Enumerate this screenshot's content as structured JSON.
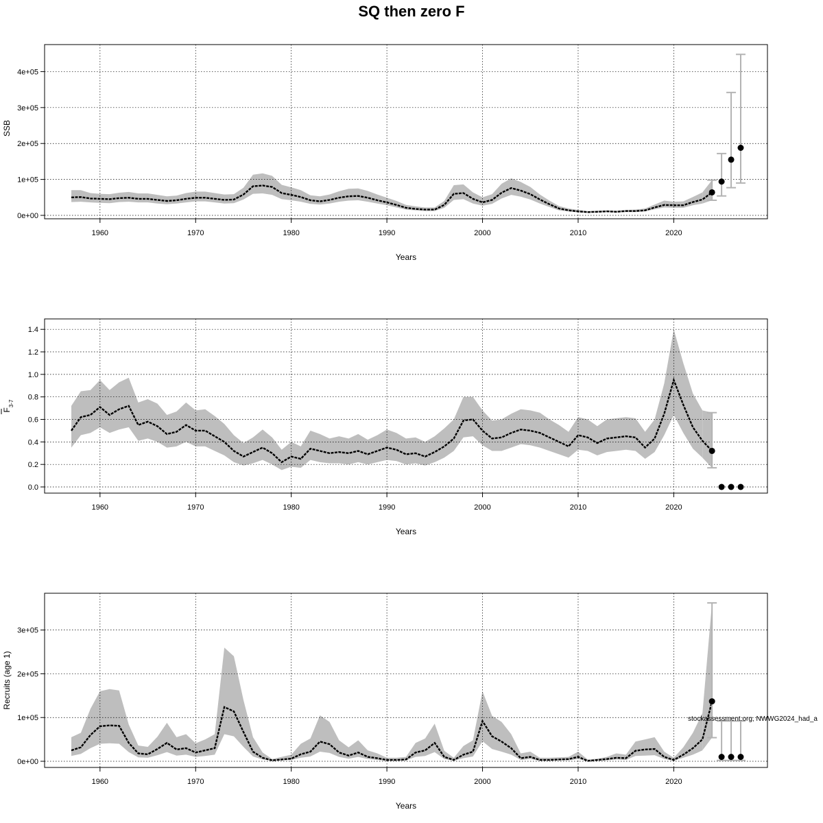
{
  "title": "SQ then zero F",
  "watermark": "stockassessment.org, NWWG2024_had_a",
  "chart_data": [
    {
      "type": "line",
      "name": "ssb",
      "ylabel": "SSB",
      "xlabel": "Years",
      "xlim": [
        1957,
        2027
      ],
      "ylim": [
        0,
        460000
      ],
      "xticks": [
        1960,
        1970,
        1980,
        1990,
        2000,
        2010,
        2020
      ],
      "yticks": [
        0,
        100000,
        200000,
        300000,
        400000
      ],
      "ytick_labels": [
        "0e+00",
        "1e+05",
        "2e+05",
        "3e+05",
        "4e+05"
      ],
      "years": [
        1957,
        1958,
        1959,
        1960,
        1961,
        1962,
        1963,
        1964,
        1965,
        1966,
        1967,
        1968,
        1969,
        1970,
        1971,
        1972,
        1973,
        1974,
        1975,
        1976,
        1977,
        1978,
        1979,
        1980,
        1981,
        1982,
        1983,
        1984,
        1985,
        1986,
        1987,
        1988,
        1989,
        1990,
        1991,
        1992,
        1993,
        1994,
        1995,
        1996,
        1997,
        1998,
        1999,
        2000,
        2001,
        2002,
        2003,
        2004,
        2005,
        2006,
        2007,
        2008,
        2009,
        2010,
        2011,
        2012,
        2013,
        2014,
        2015,
        2016,
        2017,
        2018,
        2019,
        2020,
        2021,
        2022,
        2023
      ],
      "estimate": [
        50000,
        51000,
        47000,
        46000,
        45000,
        48000,
        49000,
        46000,
        46000,
        43000,
        40000,
        42000,
        46000,
        49000,
        49000,
        46000,
        43000,
        44000,
        58000,
        81000,
        83000,
        79000,
        62000,
        57000,
        51000,
        42000,
        39000,
        43000,
        49000,
        53000,
        54000,
        49000,
        42000,
        36000,
        29000,
        21000,
        18000,
        16000,
        16000,
        29000,
        60000,
        62000,
        46000,
        36000,
        43000,
        63000,
        76000,
        69000,
        59000,
        44000,
        31000,
        19000,
        14000,
        11000,
        9000,
        10000,
        11000,
        10000,
        12000,
        12000,
        14000,
        22000,
        29000,
        28000,
        28000,
        37000,
        44000
      ],
      "lower": [
        37000,
        38000,
        36000,
        35000,
        34000,
        37000,
        38000,
        36000,
        36000,
        33000,
        31000,
        33000,
        36000,
        39000,
        39000,
        36000,
        33000,
        34000,
        44000,
        60000,
        61000,
        57000,
        45000,
        42000,
        38000,
        32000,
        30000,
        33000,
        38000,
        41000,
        42000,
        38000,
        33000,
        28000,
        22000,
        16000,
        14000,
        12000,
        12000,
        21000,
        43000,
        45000,
        33000,
        27000,
        32000,
        47000,
        57000,
        52000,
        44000,
        33000,
        23000,
        14000,
        11000,
        8000,
        7000,
        8000,
        9000,
        8000,
        9000,
        9000,
        11000,
        17000,
        22000,
        21000,
        21000,
        28000,
        33000
      ],
      "upper": [
        70000,
        70000,
        62000,
        60000,
        59000,
        63000,
        65000,
        61000,
        61000,
        57000,
        53000,
        55000,
        62000,
        66000,
        66000,
        62000,
        58000,
        59000,
        77000,
        113000,
        117000,
        110000,
        85000,
        78000,
        70000,
        56000,
        53000,
        58000,
        67000,
        74000,
        75000,
        68000,
        58000,
        49000,
        40000,
        29000,
        25000,
        22000,
        22000,
        40000,
        84000,
        86000,
        64000,
        50000,
        59000,
        88000,
        103000,
        93000,
        79000,
        58000,
        41000,
        26000,
        19000,
        15000,
        12000,
        13000,
        14000,
        13000,
        15000,
        16000,
        19000,
        30000,
        41000,
        38000,
        39000,
        51000,
        64000
      ],
      "projection": {
        "years": [
          2024,
          2025,
          2026,
          2027
        ],
        "estimate": [
          64000,
          94000,
          155000,
          188000
        ],
        "lower": [
          42000,
          54000,
          77000,
          90000
        ],
        "upper": [
          98000,
          172000,
          342000,
          448000
        ]
      }
    },
    {
      "type": "line",
      "name": "fbar",
      "ylabel": "F",
      "ylabel_sub": "3-7",
      "xlabel": "Years",
      "xlim": [
        1957,
        2027
      ],
      "ylim": [
        0,
        1.45
      ],
      "xticks": [
        1960,
        1970,
        1980,
        1990,
        2000,
        2010,
        2020
      ],
      "yticks": [
        0,
        0.2,
        0.4,
        0.6,
        0.8,
        1.0,
        1.2,
        1.4
      ],
      "ytick_labels": [
        "0.0",
        "0.2",
        "0.4",
        "0.6",
        "0.8",
        "1.0",
        "1.2",
        "1.4"
      ],
      "years": [
        1957,
        1958,
        1959,
        1960,
        1961,
        1962,
        1963,
        1964,
        1965,
        1966,
        1967,
        1968,
        1969,
        1970,
        1971,
        1972,
        1973,
        1974,
        1975,
        1976,
        1977,
        1978,
        1979,
        1980,
        1981,
        1982,
        1983,
        1984,
        1985,
        1986,
        1987,
        1988,
        1989,
        1990,
        1991,
        1992,
        1993,
        1994,
        1995,
        1996,
        1997,
        1998,
        1999,
        2000,
        2001,
        2002,
        2003,
        2004,
        2005,
        2006,
        2007,
        2008,
        2009,
        2010,
        2011,
        2012,
        2013,
        2014,
        2015,
        2016,
        2017,
        2018,
        2019,
        2020,
        2021,
        2022,
        2023
      ],
      "estimate": [
        0.5,
        0.62,
        0.64,
        0.71,
        0.64,
        0.69,
        0.72,
        0.55,
        0.58,
        0.54,
        0.47,
        0.49,
        0.55,
        0.5,
        0.5,
        0.45,
        0.4,
        0.32,
        0.27,
        0.31,
        0.35,
        0.3,
        0.22,
        0.27,
        0.25,
        0.34,
        0.32,
        0.3,
        0.31,
        0.3,
        0.32,
        0.29,
        0.32,
        0.35,
        0.33,
        0.29,
        0.3,
        0.27,
        0.31,
        0.36,
        0.43,
        0.59,
        0.6,
        0.5,
        0.43,
        0.44,
        0.48,
        0.51,
        0.5,
        0.48,
        0.44,
        0.4,
        0.36,
        0.46,
        0.44,
        0.39,
        0.43,
        0.44,
        0.45,
        0.44,
        0.35,
        0.43,
        0.65,
        0.95,
        0.73,
        0.53,
        0.41
      ],
      "lower": [
        0.35,
        0.46,
        0.48,
        0.53,
        0.48,
        0.51,
        0.53,
        0.41,
        0.43,
        0.4,
        0.35,
        0.36,
        0.4,
        0.36,
        0.36,
        0.32,
        0.28,
        0.22,
        0.19,
        0.21,
        0.24,
        0.2,
        0.15,
        0.18,
        0.17,
        0.24,
        0.22,
        0.21,
        0.21,
        0.2,
        0.22,
        0.2,
        0.22,
        0.24,
        0.23,
        0.2,
        0.21,
        0.19,
        0.22,
        0.26,
        0.32,
        0.44,
        0.45,
        0.37,
        0.32,
        0.32,
        0.35,
        0.38,
        0.37,
        0.35,
        0.32,
        0.29,
        0.26,
        0.33,
        0.32,
        0.28,
        0.31,
        0.32,
        0.33,
        0.32,
        0.25,
        0.31,
        0.46,
        0.64,
        0.48,
        0.34,
        0.26
      ],
      "upper": [
        0.72,
        0.85,
        0.86,
        0.95,
        0.86,
        0.93,
        0.97,
        0.75,
        0.78,
        0.74,
        0.64,
        0.67,
        0.75,
        0.68,
        0.69,
        0.63,
        0.56,
        0.46,
        0.39,
        0.44,
        0.51,
        0.44,
        0.33,
        0.4,
        0.36,
        0.5,
        0.47,
        0.43,
        0.45,
        0.43,
        0.47,
        0.42,
        0.46,
        0.51,
        0.48,
        0.43,
        0.44,
        0.4,
        0.45,
        0.52,
        0.6,
        0.8,
        0.8,
        0.68,
        0.59,
        0.6,
        0.65,
        0.69,
        0.68,
        0.66,
        0.6,
        0.55,
        0.49,
        0.62,
        0.6,
        0.54,
        0.6,
        0.61,
        0.62,
        0.61,
        0.49,
        0.6,
        0.92,
        1.4,
        1.1,
        0.83,
        0.68
      ],
      "projection": {
        "years": [
          2024,
          2025,
          2026,
          2027
        ],
        "estimate": [
          0.32,
          0.0,
          0.0,
          0.0
        ],
        "lower": [
          0.17,
          0.0,
          0.0,
          0.0
        ],
        "upper": [
          0.66,
          0.0,
          0.0,
          0.0
        ]
      }
    },
    {
      "type": "line",
      "name": "recruits",
      "ylabel": "Recruits (age 1)",
      "xlabel": "Years",
      "xlim": [
        1957,
        2027
      ],
      "ylim": [
        0,
        370000
      ],
      "xticks": [
        1960,
        1970,
        1980,
        1990,
        2000,
        2010,
        2020
      ],
      "yticks": [
        0,
        100000,
        200000,
        300000
      ],
      "ytick_labels": [
        "0e+00",
        "1e+05",
        "2e+05",
        "3e+05"
      ],
      "years": [
        1957,
        1958,
        1959,
        1960,
        1961,
        1962,
        1963,
        1964,
        1965,
        1966,
        1967,
        1968,
        1969,
        1970,
        1971,
        1972,
        1973,
        1974,
        1975,
        1976,
        1977,
        1978,
        1979,
        1980,
        1981,
        1982,
        1983,
        1984,
        1985,
        1986,
        1987,
        1988,
        1989,
        1990,
        1991,
        1992,
        1993,
        1994,
        1995,
        1996,
        1997,
        1998,
        1999,
        2000,
        2001,
        2002,
        2003,
        2004,
        2005,
        2006,
        2007,
        2008,
        2009,
        2010,
        2011,
        2012,
        2013,
        2014,
        2015,
        2016,
        2017,
        2018,
        2019,
        2020,
        2021,
        2022,
        2023
      ],
      "estimate": [
        25000,
        32000,
        60000,
        80000,
        82000,
        81000,
        42000,
        18000,
        16000,
        28000,
        42000,
        27000,
        30000,
        20000,
        25000,
        30000,
        124000,
        114000,
        67000,
        22000,
        8000,
        2000,
        4000,
        6000,
        16000,
        22000,
        45000,
        39000,
        20000,
        13000,
        20000,
        10000,
        7000,
        3000,
        3000,
        4000,
        20000,
        25000,
        42000,
        10000,
        3000,
        15000,
        22000,
        92000,
        57000,
        45000,
        30000,
        7000,
        10000,
        3000,
        3000,
        4000,
        5000,
        10000,
        1000,
        3000,
        5000,
        8000,
        7000,
        24000,
        27000,
        28000,
        10000,
        3000,
        15000,
        30000,
        50000
      ],
      "lower": [
        12000,
        17000,
        30000,
        40000,
        41000,
        40000,
        21000,
        9000,
        8000,
        14000,
        21000,
        13000,
        15000,
        10000,
        12000,
        15000,
        62000,
        57000,
        33000,
        11000,
        4000,
        1000,
        2000,
        3000,
        8000,
        11000,
        22000,
        19000,
        10000,
        6000,
        10000,
        5000,
        3000,
        1000,
        1000,
        2000,
        10000,
        12000,
        21000,
        5000,
        1000,
        7000,
        11000,
        46000,
        28000,
        22000,
        15000,
        3000,
        5000,
        1000,
        1000,
        2000,
        2000,
        5000,
        500,
        1000,
        2000,
        4000,
        3000,
        12000,
        13000,
        14000,
        5000,
        1000,
        8000,
        15000,
        25000
      ],
      "upper": [
        55000,
        65000,
        120000,
        160000,
        165000,
        162000,
        84000,
        36000,
        33000,
        56000,
        88000,
        55000,
        62000,
        41000,
        50000,
        62000,
        260000,
        240000,
        140000,
        55000,
        20000,
        5000,
        10000,
        15000,
        40000,
        52000,
        105000,
        90000,
        48000,
        32000,
        48000,
        25000,
        18000,
        8000,
        8000,
        10000,
        42000,
        52000,
        86000,
        24000,
        8000,
        35000,
        48000,
        160000,
        104000,
        90000,
        62000,
        18000,
        22000,
        8000,
        8000,
        9000,
        10000,
        22000,
        4000,
        6000,
        10000,
        18000,
        15000,
        45000,
        50000,
        55000,
        22000,
        8000,
        32000,
        65000,
        110000
      ],
      "projection": {
        "years": [
          2024,
          2025,
          2026,
          2027
        ],
        "estimate": [
          137000,
          10000,
          10000,
          10000
        ],
        "lower": [
          54000,
          2000,
          2000,
          2000
        ],
        "upper": [
          362000,
          92000,
          92000,
          92000
        ]
      }
    }
  ]
}
